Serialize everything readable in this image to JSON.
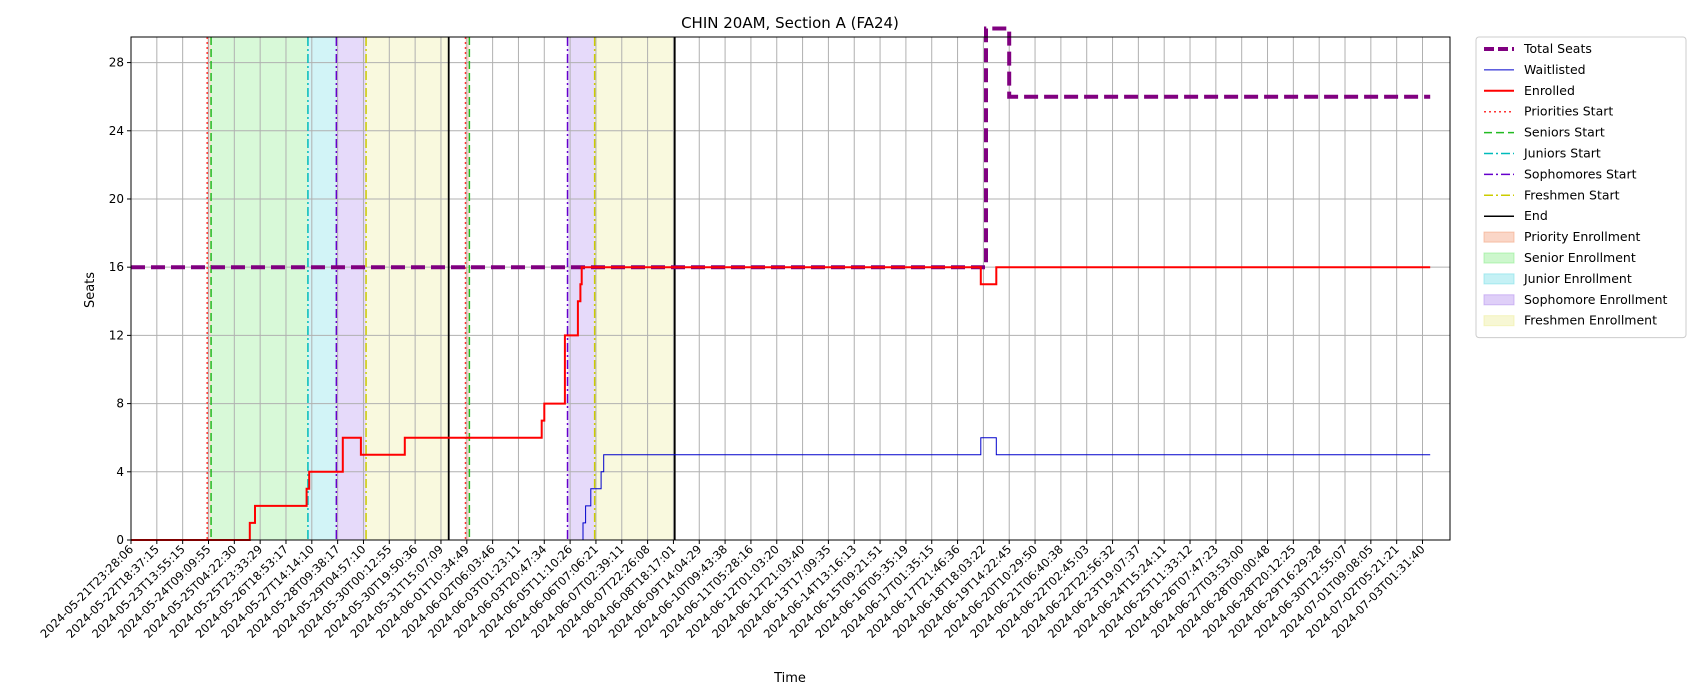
{
  "chart_data": {
    "type": "line",
    "title": "CHIN 20AM, Section A (FA24)",
    "xlabel": "Time",
    "ylabel": "Seats",
    "ylim": [
      0,
      29.5
    ],
    "yticks": [
      0,
      4,
      8,
      12,
      16,
      20,
      24,
      28
    ],
    "grid": true,
    "legend_placement": "outside-right",
    "xtick_labels": [
      "2024-05-21T23:28:06",
      "2024-05-22T18:37:15",
      "2024-05-23T13:55:15",
      "2024-05-24T09:09:55",
      "2024-05-25T04:22:30",
      "2024-05-25T23:33:29",
      "2024-05-26T18:53:17",
      "2024-05-27T14:14:10",
      "2024-05-28T09:38:17",
      "2024-05-29T04:57:10",
      "2024-05-30T00:12:55",
      "2024-05-30T19:50:36",
      "2024-05-31T15:07:09",
      "2024-06-01T10:34:49",
      "2024-06-02T06:03:46",
      "2024-06-03T01:23:11",
      "2024-06-03T20:47:34",
      "2024-06-05T11:10:26",
      "2024-06-06T07:06:21",
      "2024-06-07T02:39:11",
      "2024-06-07T22:26:08",
      "2024-06-08T18:17:01",
      "2024-06-09T14:04:29",
      "2024-06-10T09:43:38",
      "2024-06-11T05:28:16",
      "2024-06-12T01:03:20",
      "2024-06-12T21:03:40",
      "2024-06-13T17:09:35",
      "2024-06-14T13:16:13",
      "2024-06-15T09:21:51",
      "2024-06-16T05:35:19",
      "2024-06-17T01:35:15",
      "2024-06-17T21:46:36",
      "2024-06-18T18:03:22",
      "2024-06-19T14:22:45",
      "2024-06-20T10:29:50",
      "2024-06-21T06:40:38",
      "2024-06-22T02:45:03",
      "2024-06-22T22:56:32",
      "2024-06-23T19:07:37",
      "2024-06-24T15:24:11",
      "2024-06-25T11:33:12",
      "2024-06-26T07:47:23",
      "2024-06-27T03:53:00",
      "2024-06-28T00:00:48",
      "2024-06-28T20:12:25",
      "2024-06-29T16:29:28",
      "2024-06-30T12:55:07",
      "2024-07-01T09:08:05",
      "2024-07-02T05:21:21",
      "2024-07-03T01:31:40"
    ],
    "series": [
      {
        "name": "Total Seats",
        "color": "#800080",
        "style": "dashed",
        "width": 4,
        "points": [
          [
            0,
            16
          ],
          [
            33.1,
            16
          ],
          [
            33.1,
            30
          ],
          [
            34,
            30
          ],
          [
            34,
            26
          ],
          [
            50.3,
            26
          ]
        ]
      },
      {
        "name": "Waitlisted",
        "color": "#0000cc",
        "style": "solid",
        "width": 1,
        "points": [
          [
            0,
            0
          ],
          [
            17.5,
            0
          ],
          [
            17.5,
            1
          ],
          [
            17.6,
            1
          ],
          [
            17.6,
            2
          ],
          [
            17.8,
            2
          ],
          [
            17.8,
            3
          ],
          [
            18.2,
            3
          ],
          [
            18.2,
            4
          ],
          [
            18.3,
            4
          ],
          [
            18.3,
            5
          ],
          [
            32.9,
            5
          ],
          [
            32.9,
            6
          ],
          [
            33.5,
            6
          ],
          [
            33.5,
            5
          ],
          [
            50.3,
            5
          ]
        ]
      },
      {
        "name": "Enrolled",
        "color": "#ff0000",
        "style": "solid",
        "width": 2,
        "points": [
          [
            0,
            0
          ],
          [
            4.6,
            0
          ],
          [
            4.6,
            1
          ],
          [
            4.8,
            1
          ],
          [
            4.8,
            2
          ],
          [
            6.8,
            2
          ],
          [
            6.8,
            3
          ],
          [
            6.9,
            3
          ],
          [
            6.9,
            4
          ],
          [
            8.2,
            4
          ],
          [
            8.2,
            6
          ],
          [
            8.9,
            6
          ],
          [
            8.9,
            5
          ],
          [
            10.6,
            5
          ],
          [
            10.6,
            6
          ],
          [
            15.9,
            6
          ],
          [
            15.9,
            7
          ],
          [
            16,
            7
          ],
          [
            16,
            8
          ],
          [
            16.8,
            8
          ],
          [
            16.8,
            12
          ],
          [
            17.3,
            12
          ],
          [
            17.3,
            14
          ],
          [
            17.4,
            14
          ],
          [
            17.4,
            15
          ],
          [
            17.45,
            15
          ],
          [
            17.45,
            16
          ],
          [
            32.9,
            16
          ],
          [
            32.9,
            15
          ],
          [
            33.5,
            15
          ],
          [
            33.5,
            16
          ],
          [
            50.3,
            16
          ]
        ]
      }
    ],
    "event_lines": [
      {
        "name": "Priorities Start",
        "color": "#ff3333",
        "style": "dotted",
        "x": [
          2.95,
          12.95
        ]
      },
      {
        "name": "Seniors Start",
        "color": "#22bb22",
        "style": "dashed",
        "x": [
          3.1,
          13.1
        ]
      },
      {
        "name": "Juniors Start",
        "color": "#00bbbb",
        "style": "dashdot",
        "x": [
          6.85
        ]
      },
      {
        "name": "Sophomores Start",
        "color": "#6600cc",
        "style": "dashdot",
        "x": [
          7.95,
          16.9
        ]
      },
      {
        "name": "Freshmen Start",
        "color": "#cccc00",
        "style": "dashdot",
        "x": [
          9.1,
          17.95
        ]
      },
      {
        "name": "End",
        "color": "#000000",
        "style": "solid",
        "x": [
          12.3,
          21.05
        ]
      }
    ],
    "regions": [
      {
        "name": "Priority Enrollment",
        "color": "#f4a582",
        "spans": [
          [
            2.95,
            3.1
          ],
          [
            12.95,
            13.1
          ]
        ]
      },
      {
        "name": "Senior Enrollment",
        "color": "#90ee90",
        "spans": [
          [
            3.1,
            6.85
          ]
        ]
      },
      {
        "name": "Junior Enrollment",
        "color": "#7fdfe8",
        "spans": [
          [
            6.85,
            7.95
          ]
        ]
      },
      {
        "name": "Sophomore Enrollment",
        "color": "#b794f0",
        "spans": [
          [
            7.95,
            9.1
          ],
          [
            16.9,
            17.95
          ]
        ]
      },
      {
        "name": "Freshmen Enrollment",
        "color": "#eeeea0",
        "spans": [
          [
            9.1,
            12.3
          ],
          [
            17.95,
            21.05
          ]
        ]
      }
    ]
  }
}
